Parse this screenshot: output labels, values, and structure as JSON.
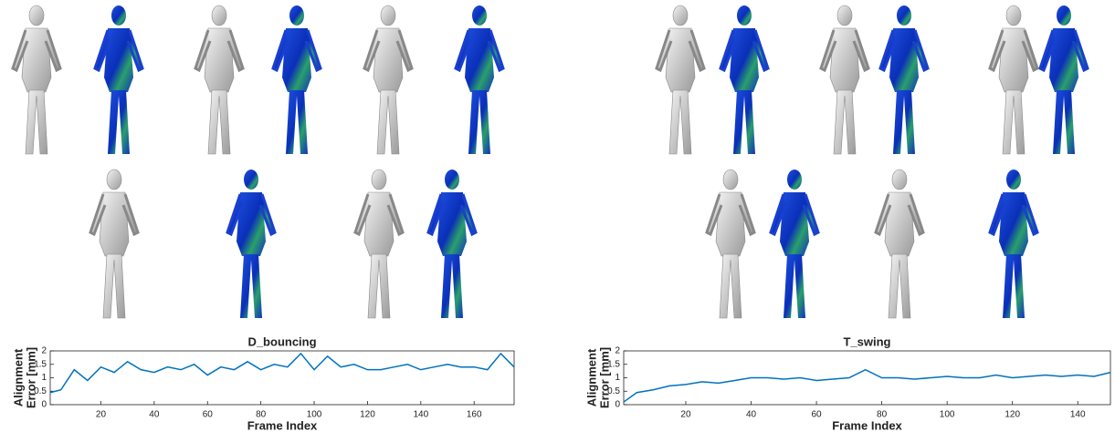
{
  "chart_data": [
    {
      "type": "line",
      "title": "D_bouncing",
      "xlabel": "Frame Index",
      "ylabel": [
        "Alignment",
        "Error [mm]"
      ],
      "x": [
        1,
        5,
        10,
        15,
        20,
        25,
        30,
        35,
        40,
        45,
        50,
        55,
        60,
        65,
        70,
        75,
        80,
        85,
        90,
        95,
        100,
        105,
        110,
        115,
        120,
        125,
        130,
        135,
        140,
        145,
        150,
        155,
        160,
        165,
        170,
        175
      ],
      "series": [
        {
          "color": "#0072bd",
          "values": [
            0.45,
            0.55,
            1.3,
            0.9,
            1.4,
            1.2,
            1.6,
            1.3,
            1.2,
            1.4,
            1.3,
            1.5,
            1.1,
            1.4,
            1.3,
            1.6,
            1.3,
            1.5,
            1.4,
            1.9,
            1.3,
            1.8,
            1.4,
            1.5,
            1.3,
            1.3,
            1.4,
            1.5,
            1.3,
            1.4,
            1.5,
            1.4,
            1.4,
            1.3,
            1.9,
            1.4
          ]
        }
      ],
      "xlim": [
        1,
        175
      ],
      "xticks": [
        20,
        40,
        60,
        80,
        100,
        120,
        140,
        160
      ],
      "ylim": [
        0,
        2
      ],
      "yticks": [
        0,
        0.5,
        1,
        1.5,
        2
      ]
    },
    {
      "type": "line",
      "title": "T_swing",
      "xlabel": "Frame Index",
      "ylabel": [
        "Alignment",
        "Error [mm]"
      ],
      "x": [
        1,
        5,
        10,
        15,
        20,
        25,
        30,
        35,
        40,
        45,
        50,
        55,
        60,
        65,
        70,
        75,
        80,
        85,
        90,
        95,
        100,
        105,
        110,
        115,
        120,
        125,
        130,
        135,
        140,
        145,
        150
      ],
      "series": [
        {
          "color": "#0072bd",
          "values": [
            0.1,
            0.45,
            0.55,
            0.7,
            0.75,
            0.85,
            0.8,
            0.9,
            1.0,
            1.0,
            0.95,
            1.0,
            0.9,
            0.95,
            1.0,
            1.3,
            1.0,
            1.0,
            0.95,
            1.0,
            1.05,
            1.0,
            1.0,
            1.1,
            1.0,
            1.05,
            1.1,
            1.05,
            1.1,
            1.05,
            1.2
          ]
        }
      ],
      "xlim": [
        1,
        150
      ],
      "xticks": [
        20,
        40,
        60,
        80,
        100,
        120,
        140
      ],
      "ylim": [
        0,
        2
      ],
      "yticks": [
        0,
        0.5,
        1,
        1.5,
        2
      ]
    }
  ]
}
